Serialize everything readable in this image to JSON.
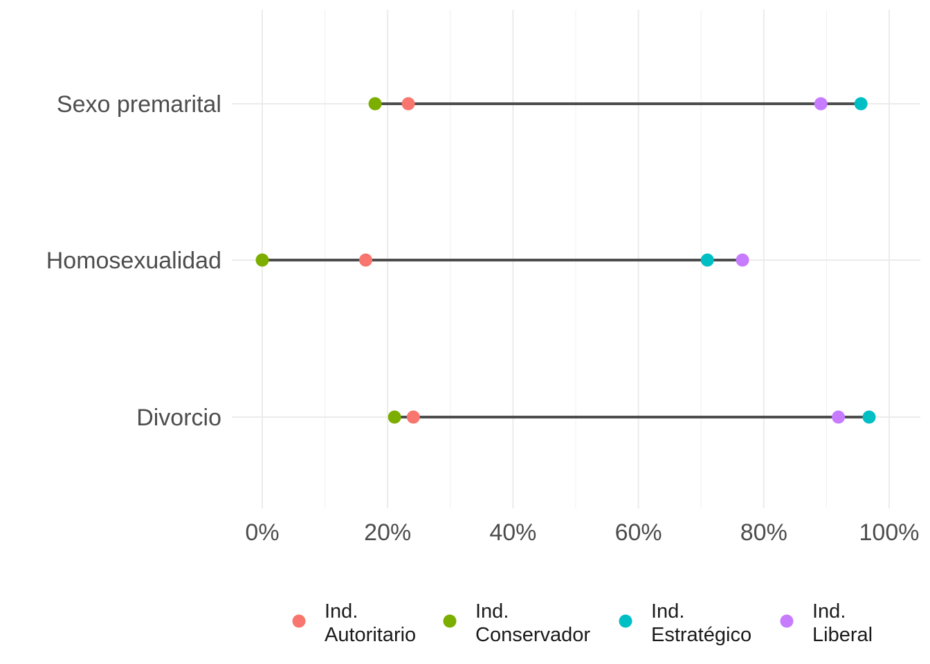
{
  "chart_data": {
    "type": "dumbbell",
    "categories": [
      "Sexo premarital",
      "Homosexualidad",
      "Divorcio"
    ],
    "x_ticks": [
      "0%",
      "20%",
      "40%",
      "60%",
      "80%",
      "100%"
    ],
    "xlim": [
      0,
      1
    ],
    "grid": true,
    "legend_position": "bottom",
    "series": [
      {
        "name": "Ind. Autoritario",
        "label_lines": [
          "Ind.",
          "Autoritario"
        ],
        "color": "#F8766D",
        "values": [
          0.233,
          0.165,
          0.241
        ]
      },
      {
        "name": "Ind. Conservador",
        "label_lines": [
          "Ind.",
          "Conservador"
        ],
        "color": "#7CAE00",
        "values": [
          0.18,
          0.0,
          0.211
        ]
      },
      {
        "name": "Ind. Estratégico",
        "label_lines": [
          "Ind.",
          "Estratégico"
        ],
        "color": "#00BFC4",
        "values": [
          0.955,
          0.71,
          0.968
        ]
      },
      {
        "name": "Ind. Liberal",
        "label_lines": [
          "Ind.",
          "Liberal"
        ],
        "color": "#C77CFF",
        "values": [
          0.891,
          0.766,
          0.919
        ]
      }
    ],
    "segment_color": "#4d4d4d"
  }
}
